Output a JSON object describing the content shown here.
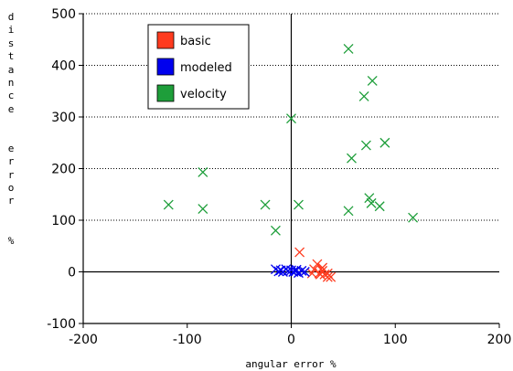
{
  "chart_data": {
    "type": "scatter",
    "xlabel": "angular error %",
    "ylabel": "distance error %",
    "xlim": [
      -200,
      200
    ],
    "ylim": [
      -100,
      500
    ],
    "xticks": [
      -200,
      -100,
      0,
      100,
      200
    ],
    "yticks": [
      -100,
      0,
      100,
      200,
      300,
      400,
      500
    ],
    "xtick_labels": [
      "-200",
      "-100",
      "0",
      "100",
      "200"
    ],
    "ytick_labels": [
      "-100",
      "0",
      "100",
      "200",
      "300",
      "400",
      "500"
    ],
    "grid": "horizontal dotted",
    "legend_position": "top-left",
    "marker": "x",
    "series": [
      {
        "name": "basic",
        "color": "#ff3b1f",
        "points": [
          [
            8,
            38
          ],
          [
            22,
            5
          ],
          [
            25,
            15
          ],
          [
            27,
            -3
          ],
          [
            30,
            8
          ],
          [
            32,
            -5
          ],
          [
            35,
            -3
          ],
          [
            38,
            -10
          ],
          [
            28,
            -5
          ],
          [
            20,
            -3
          ],
          [
            35,
            -10
          ],
          [
            30,
            2
          ]
        ]
      },
      {
        "name": "modeled",
        "color": "#0000ee",
        "points": [
          [
            -15,
            5
          ],
          [
            -10,
            3
          ],
          [
            -8,
            0
          ],
          [
            -5,
            5
          ],
          [
            -3,
            2
          ],
          [
            0,
            3
          ],
          [
            2,
            0
          ],
          [
            5,
            4
          ],
          [
            7,
            -2
          ],
          [
            10,
            2
          ],
          [
            13,
            0
          ],
          [
            -12,
            1
          ],
          [
            4,
            1
          ]
        ]
      },
      {
        "name": "velocity",
        "color": "#1e9e3a",
        "points": [
          [
            55,
            432
          ],
          [
            78,
            370
          ],
          [
            70,
            340
          ],
          [
            0,
            297
          ],
          [
            90,
            250
          ],
          [
            72,
            245
          ],
          [
            58,
            220
          ],
          [
            -85,
            193
          ],
          [
            -118,
            130
          ],
          [
            -85,
            122
          ],
          [
            -25,
            130
          ],
          [
            7,
            130
          ],
          [
            75,
            143
          ],
          [
            77,
            133
          ],
          [
            85,
            127
          ],
          [
            55,
            118
          ],
          [
            117,
            105
          ],
          [
            -15,
            80
          ]
        ]
      }
    ]
  }
}
